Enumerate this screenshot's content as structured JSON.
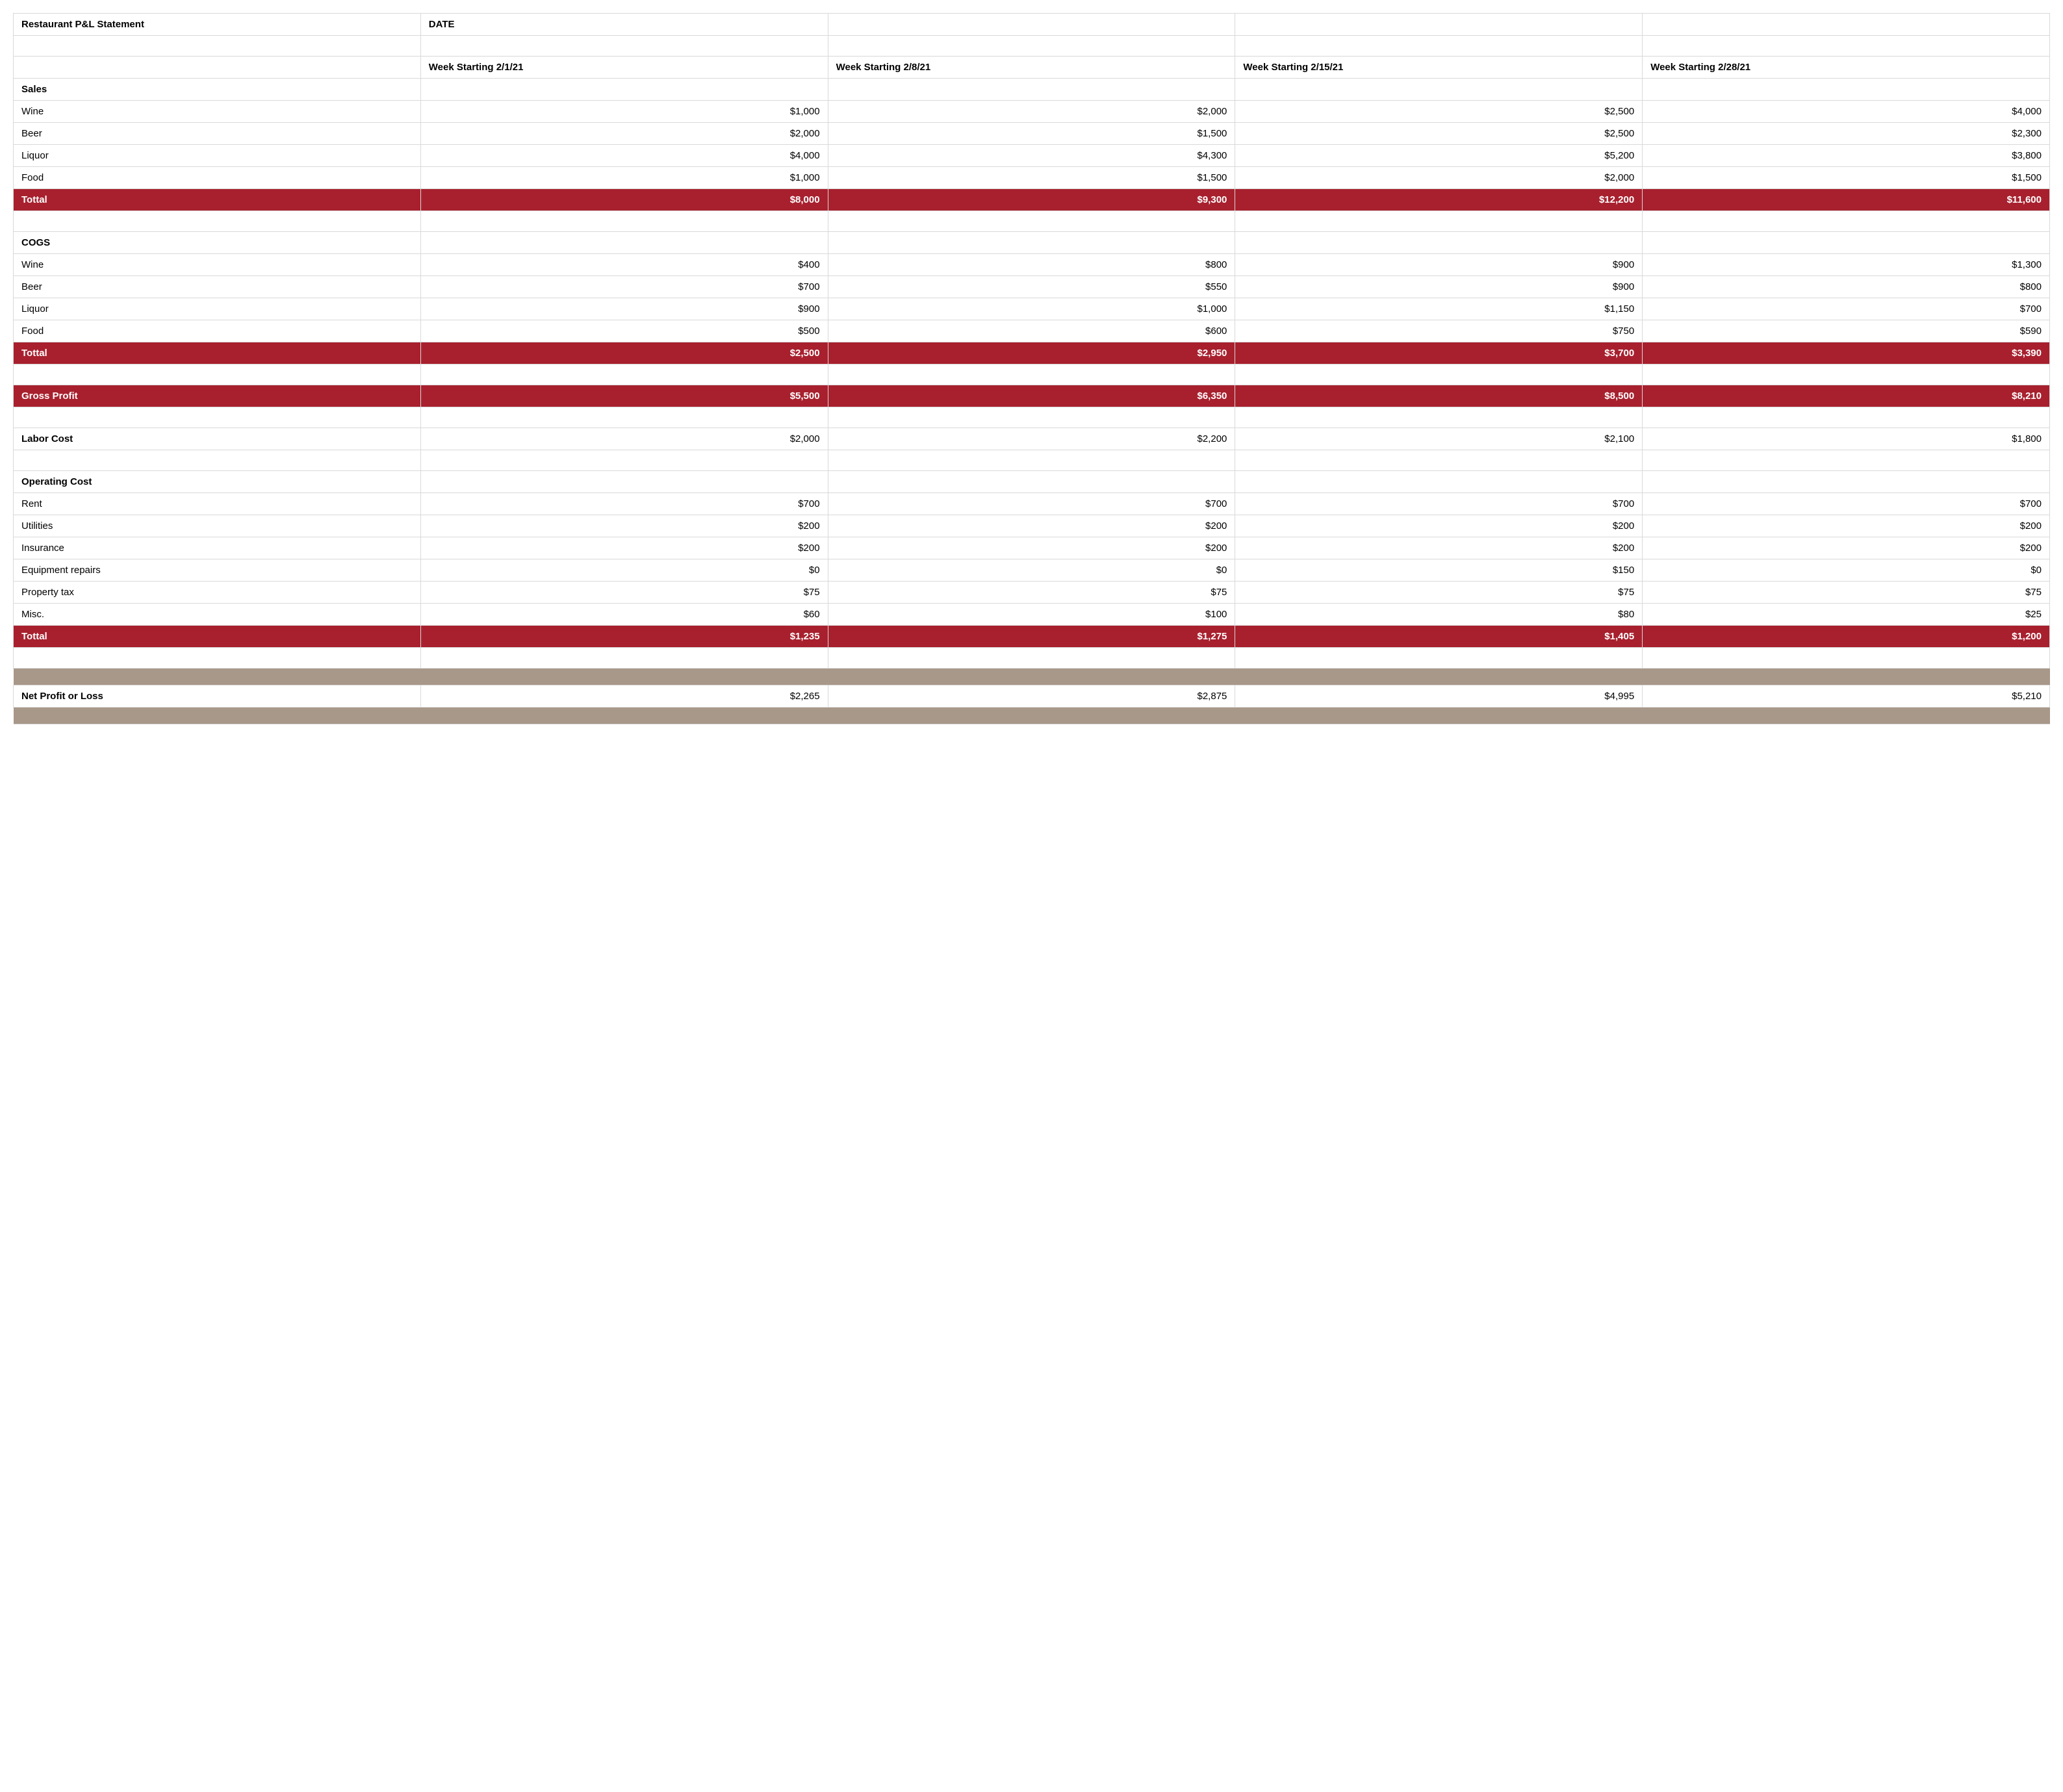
{
  "colors": {
    "total_bg": "#a8202e",
    "total_text": "#ffffff",
    "separator_bg": "#a89889",
    "border": "#d9d9d9",
    "text": "#000000",
    "page_bg": "#ffffff"
  },
  "typography": {
    "font_family": "-apple-system, BlinkMacSystemFont, Segoe UI, Arial, sans-serif",
    "cell_fontsize_pt": 11,
    "bold_weight": 800
  },
  "layout": {
    "columns": 5,
    "label_col_width_pct": 20,
    "value_col_width_pct": 20
  },
  "header": {
    "title": "Restaurant P&L Statement",
    "date_label": "DATE",
    "week_headers": [
      "Week Starting 2/1/21",
      "Week Starting 2/8/21",
      "Week Starting 2/15/21",
      "Week Starting 2/28/21"
    ]
  },
  "sections": {
    "sales": {
      "label": "Sales",
      "rows": [
        {
          "label": "Wine",
          "values": [
            "$1,000",
            "$2,000",
            "$2,500",
            "$4,000"
          ]
        },
        {
          "label": "Beer",
          "values": [
            "$2,000",
            "$1,500",
            "$2,500",
            "$2,300"
          ]
        },
        {
          "label": "Liquor",
          "values": [
            "$4,000",
            "$4,300",
            "$5,200",
            "$3,800"
          ]
        },
        {
          "label": "Food",
          "values": [
            "$1,000",
            "$1,500",
            "$2,000",
            "$1,500"
          ]
        }
      ],
      "total": {
        "label": "Tottal",
        "values": [
          "$8,000",
          "$9,300",
          "$12,200",
          "$11,600"
        ]
      }
    },
    "cogs": {
      "label": "COGS",
      "rows": [
        {
          "label": "Wine",
          "values": [
            "$400",
            "$800",
            "$900",
            "$1,300"
          ]
        },
        {
          "label": "Beer",
          "values": [
            "$700",
            "$550",
            "$900",
            "$800"
          ]
        },
        {
          "label": "Liquor",
          "values": [
            "$900",
            "$1,000",
            "$1,150",
            "$700"
          ]
        },
        {
          "label": "Food",
          "values": [
            "$500",
            "$600",
            "$750",
            "$590"
          ]
        }
      ],
      "total": {
        "label": "Tottal",
        "values": [
          "$2,500",
          "$2,950",
          "$3,700",
          "$3,390"
        ]
      }
    },
    "gross_profit": {
      "label": "Gross Profit",
      "values": [
        "$5,500",
        "$6,350",
        "$8,500",
        "$8,210"
      ]
    },
    "labor_cost": {
      "label": "Labor Cost",
      "values": [
        "$2,000",
        "$2,200",
        "$2,100",
        "$1,800"
      ]
    },
    "operating": {
      "label": "Operating Cost",
      "rows": [
        {
          "label": "Rent",
          "values": [
            "$700",
            "$700",
            "$700",
            "$700"
          ]
        },
        {
          "label": "Utilities",
          "values": [
            "$200",
            "$200",
            "$200",
            "$200"
          ]
        },
        {
          "label": "Insurance",
          "values": [
            "$200",
            "$200",
            "$200",
            "$200"
          ]
        },
        {
          "label": "Equipment repairs",
          "values": [
            "$0",
            "$0",
            "$150",
            "$0"
          ]
        },
        {
          "label": "Property tax",
          "values": [
            "$75",
            "$75",
            "$75",
            "$75"
          ]
        },
        {
          "label": "Misc.",
          "values": [
            "$60",
            "$100",
            "$80",
            "$25"
          ]
        }
      ],
      "total": {
        "label": "Tottal",
        "values": [
          "$1,235",
          "$1,275",
          "$1,405",
          "$1,200"
        ]
      }
    },
    "net": {
      "label": "Net Profit or Loss",
      "values": [
        "$2,265",
        "$2,875",
        "$4,995",
        "$5,210"
      ]
    }
  }
}
